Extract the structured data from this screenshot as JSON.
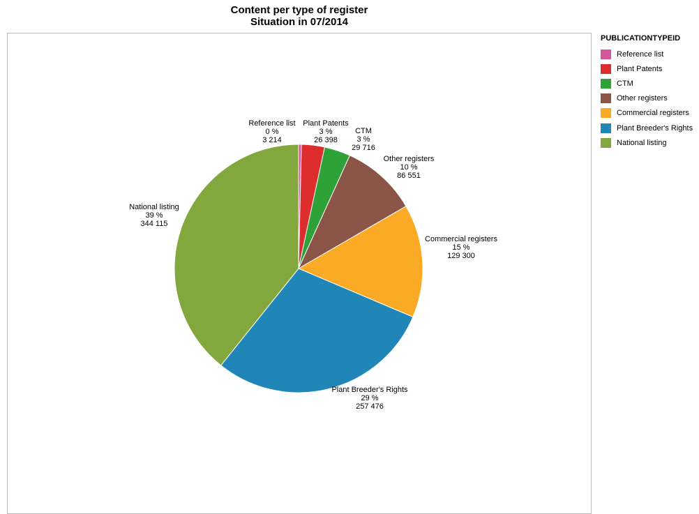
{
  "chart_data": {
    "type": "pie",
    "title": "Content per type of register",
    "subtitle": "Situation in 07/2014",
    "legend_title": "PUBLICATIONTYPEID",
    "legend_placement": "right",
    "slices": [
      {
        "label": "Reference list",
        "value": 3214,
        "value_text": "3 214",
        "percent_text": "0  %",
        "color": "#D6559A"
      },
      {
        "label": "Plant Patents",
        "value": 26398,
        "value_text": "26 398",
        "percent_text": "3  %",
        "color": "#DD2D2C"
      },
      {
        "label": "CTM",
        "value": 29716,
        "value_text": "29 716",
        "percent_text": "3  %",
        "color": "#2EA236"
      },
      {
        "label": "Other registers",
        "value": 86551,
        "value_text": "86 551",
        "percent_text": "10  %",
        "color": "#8A5447"
      },
      {
        "label": "Commercial registers",
        "value": 129300,
        "value_text": "129 300",
        "percent_text": "15  %",
        "color": "#FBAA25"
      },
      {
        "label": "Plant Breeder's Rights",
        "value": 257476,
        "value_text": "257 476",
        "percent_text": "29  %",
        "color": "#1F86B7"
      },
      {
        "label": "National listing",
        "value": 344115,
        "value_text": "344 115",
        "percent_text": "39  %",
        "color": "#82A73D"
      }
    ]
  }
}
